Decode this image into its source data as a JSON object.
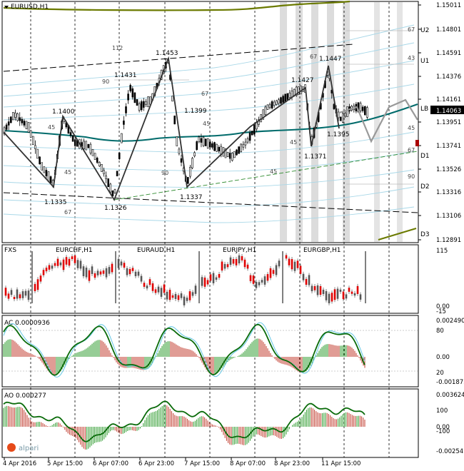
{
  "main": {
    "title": "EURUSD,H1",
    "collapse_arrow": "triangle-down-icon",
    "price_axis": [
      "1.15011",
      "1.14801",
      "1.14591",
      "1.14376",
      "1.14161",
      "1.13951",
      "1.13741",
      "1.13526",
      "1.13316",
      "1.13106",
      "1.12891"
    ],
    "current_price": "1.14063",
    "level_labels": [
      "U2",
      "U1",
      "LB",
      "D1",
      "D2",
      "D3"
    ],
    "pivot_labels": [
      "1.1453",
      "1.1431",
      "1.1400",
      "1.1399",
      "1.1335",
      "1.1326",
      "1.1337",
      "1.1427",
      "1.1447",
      "1.1395",
      "1.1371"
    ],
    "small_numbers": [
      "112",
      "90",
      "45",
      "45",
      "67",
      "67",
      "90",
      "45",
      "45",
      "45",
      "67",
      "43",
      "67",
      "45",
      "67",
      "90"
    ],
    "colors": {
      "ma_line": "#006b6b",
      "envelope_top": "#6b7a00",
      "zigzag": "#222222",
      "current_price_bg": "#000000",
      "candle": "#000000",
      "shade": "#d9d9d9",
      "channel": "#000000",
      "bands": "#a9d8e8",
      "green_dash": "#2e8b2e"
    }
  },
  "fxs": {
    "label": "FXS",
    "pairs": [
      "EURCHF,H1",
      "EURAUD,H1",
      "EURJPY,H1",
      "EURGBP,H1"
    ],
    "axis": [
      "115",
      "0.00",
      "-15"
    ]
  },
  "ac": {
    "label": "AC 0.0000936",
    "axis": [
      "0.002490",
      "80",
      "0.00",
      "20",
      "-0.001873"
    ]
  },
  "ao": {
    "label": "AO 0.000277",
    "axis": [
      "0.003624",
      "100",
      "0.00",
      "-100",
      "-0.002541"
    ],
    "brand": "alpari",
    "brand_icon": "alpari-logo-icon"
  },
  "time_axis": [
    "4 Apr 2016",
    "5 Apr 15:00",
    "6 Apr 07:00",
    "6 Apr 23:00",
    "7 Apr 15:00",
    "8 Apr 07:00",
    "8 Apr 23:00",
    "11 Apr 15:00"
  ]
}
